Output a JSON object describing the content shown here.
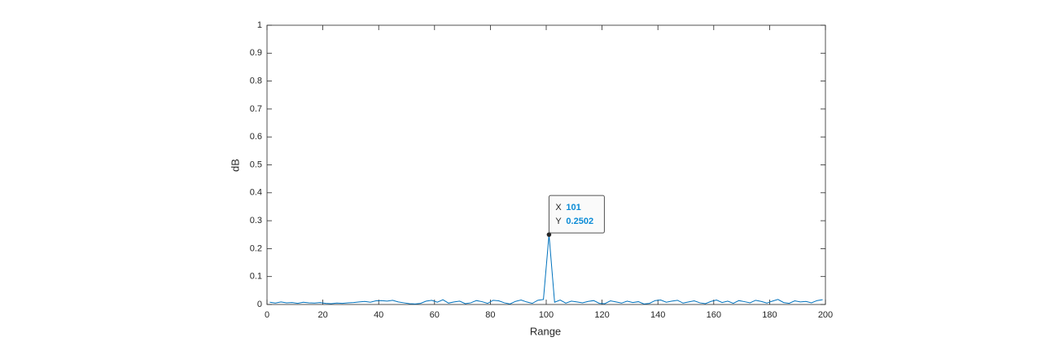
{
  "chart_data": {
    "type": "line",
    "x_label": "Range",
    "y_label": "dB",
    "xlim": [
      0,
      200
    ],
    "xticks": [
      0,
      20,
      40,
      60,
      80,
      100,
      120,
      140,
      160,
      180,
      200
    ],
    "ylim": [
      0,
      1
    ],
    "yticks": [
      0,
      0.1,
      0.2,
      0.3,
      0.4,
      0.5,
      0.6,
      0.7,
      0.8,
      0.9,
      1
    ],
    "series": [
      {
        "color": "#0072bd",
        "x": [
          1,
          3,
          5,
          7,
          9,
          11,
          13,
          15,
          17,
          19,
          21,
          23,
          25,
          27,
          29,
          31,
          33,
          35,
          37,
          39,
          41,
          43,
          45,
          47,
          49,
          51,
          53,
          55,
          57,
          59,
          61,
          63,
          65,
          67,
          69,
          71,
          73,
          75,
          77,
          79,
          81,
          83,
          85,
          87,
          89,
          91,
          93,
          95,
          97,
          99,
          101,
          103,
          105,
          107,
          109,
          111,
          113,
          115,
          117,
          119,
          121,
          123,
          125,
          127,
          129,
          131,
          133,
          135,
          137,
          139,
          141,
          143,
          145,
          147,
          149,
          151,
          153,
          155,
          157,
          159,
          161,
          163,
          165,
          167,
          169,
          171,
          173,
          175,
          177,
          179,
          181,
          183,
          185,
          187,
          189,
          191,
          193,
          195,
          197,
          199
        ],
        "values": [
          0.008,
          0.005,
          0.009,
          0.006,
          0.007,
          0.004,
          0.008,
          0.006,
          0.005,
          0.007,
          0.004,
          0.003,
          0.005,
          0.004,
          0.006,
          0.007,
          0.009,
          0.011,
          0.008,
          0.013,
          0.014,
          0.012,
          0.015,
          0.009,
          0.006,
          0.003,
          0.002,
          0.004,
          0.012,
          0.015,
          0.008,
          0.017,
          0.005,
          0.009,
          0.012,
          0.003,
          0.006,
          0.014,
          0.01,
          0.004,
          0.015,
          0.013,
          0.006,
          0.002,
          0.011,
          0.016,
          0.009,
          0.004,
          0.015,
          0.018,
          0.2502,
          0.008,
          0.016,
          0.005,
          0.012,
          0.009,
          0.006,
          0.011,
          0.014,
          0.004,
          0.003,
          0.013,
          0.009,
          0.005,
          0.012,
          0.007,
          0.01,
          0.002,
          0.004,
          0.014,
          0.016,
          0.008,
          0.012,
          0.015,
          0.005,
          0.009,
          0.013,
          0.006,
          0.003,
          0.011,
          0.016,
          0.007,
          0.012,
          0.004,
          0.014,
          0.01,
          0.006,
          0.015,
          0.011,
          0.005,
          0.012,
          0.018,
          0.007,
          0.004,
          0.013,
          0.009,
          0.011,
          0.006,
          0.014,
          0.017
        ]
      }
    ],
    "datatip": {
      "x_label": "X",
      "x": 101,
      "y_label": "Y",
      "y": 0.2502
    }
  }
}
